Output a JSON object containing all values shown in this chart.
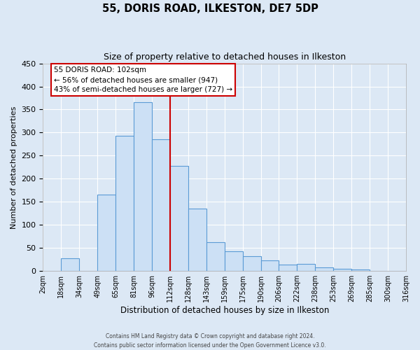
{
  "title": "55, DORIS ROAD, ILKESTON, DE7 5DP",
  "subtitle": "Size of property relative to detached houses in Ilkeston",
  "xlabel": "Distribution of detached houses by size in Ilkeston",
  "ylabel": "Number of detached properties",
  "bar_labels": [
    "2sqm",
    "18sqm",
    "34sqm",
    "49sqm",
    "65sqm",
    "81sqm",
    "96sqm",
    "112sqm",
    "128sqm",
    "143sqm",
    "159sqm",
    "175sqm",
    "190sqm",
    "206sqm",
    "222sqm",
    "238sqm",
    "253sqm",
    "269sqm",
    "285sqm",
    "300sqm",
    "316sqm"
  ],
  "bar_heights": [
    0,
    27,
    0,
    166,
    293,
    366,
    285,
    228,
    135,
    62,
    43,
    32,
    23,
    14,
    15,
    8,
    5,
    3,
    0,
    0
  ],
  "bar_color": "#cce0f5",
  "bar_edge_color": "#5b9bd5",
  "background_color": "#dce8f5",
  "grid_color": "#ffffff",
  "ylim": [
    0,
    450
  ],
  "yticks": [
    0,
    50,
    100,
    150,
    200,
    250,
    300,
    350,
    400,
    450
  ],
  "property_line_color": "#cc0000",
  "annotation_text_line1": "55 DORIS ROAD: 102sqm",
  "annotation_text_line2": "← 56% of detached houses are smaller (947)",
  "annotation_text_line3": "43% of semi-detached houses are larger (727) →",
  "annotation_box_color": "#ffffff",
  "annotation_box_edge_color": "#cc0000",
  "footer_line1": "Contains HM Land Registry data © Crown copyright and database right 2024.",
  "footer_line2": "Contains public sector information licensed under the Open Government Licence v3.0."
}
